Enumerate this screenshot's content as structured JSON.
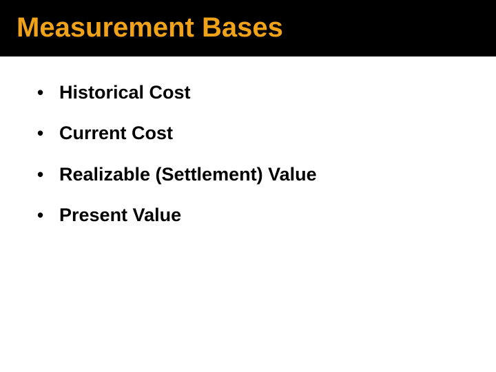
{
  "title": {
    "text": "Measurement Bases",
    "color": "#f0a318",
    "fontsize": 40,
    "background": "#000000"
  },
  "bullets": [
    {
      "text": "Historical Cost"
    },
    {
      "text": "Current Cost"
    },
    {
      "text": "Realizable (Settlement) Value"
    },
    {
      "text": "Present Value"
    }
  ],
  "style": {
    "slide_background": "#ffffff",
    "bullet_color": "#000000",
    "bullet_fontsize": 27,
    "bullet_weight": 700,
    "bullet_spacing": 27,
    "content_indent": 54,
    "dot_char": "•"
  }
}
